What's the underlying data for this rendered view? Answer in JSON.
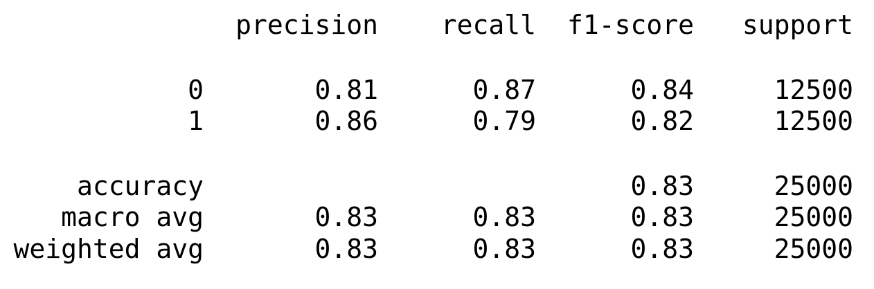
{
  "report": {
    "header": {
      "precision": "precision",
      "recall": "recall",
      "f1": "f1-score",
      "support": "support"
    },
    "rows": [
      {
        "label": "0",
        "precision": "0.81",
        "recall": "0.87",
        "f1": "0.84",
        "support": "12500"
      },
      {
        "label": "1",
        "precision": "0.86",
        "recall": "0.79",
        "f1": "0.82",
        "support": "12500"
      }
    ],
    "accuracy": {
      "label": "accuracy",
      "f1": "0.83",
      "support": "25000"
    },
    "macro_avg": {
      "label": "macro avg",
      "precision": "0.83",
      "recall": "0.83",
      "f1": "0.83",
      "support": "25000"
    },
    "weighted_avg": {
      "label": "weighted avg",
      "precision": "0.83",
      "recall": "0.83",
      "f1": "0.83",
      "support": "25000"
    }
  }
}
